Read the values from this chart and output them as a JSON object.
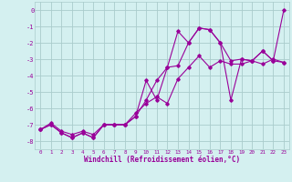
{
  "xlabel": "Windchill (Refroidissement éolien,°C)",
  "x": [
    0,
    1,
    2,
    3,
    4,
    5,
    6,
    7,
    8,
    9,
    10,
    11,
    12,
    13,
    14,
    15,
    16,
    17,
    18,
    19,
    20,
    21,
    22,
    23
  ],
  "line1": [
    -7.3,
    -7.0,
    -7.5,
    -7.8,
    -7.5,
    -7.8,
    -7.0,
    -7.0,
    -7.0,
    -6.5,
    -5.5,
    -4.3,
    -3.5,
    -1.3,
    -2.0,
    -1.1,
    -1.2,
    -2.0,
    -3.1,
    -3.0,
    -3.1,
    -2.5,
    -3.1,
    -3.2
  ],
  "line2": [
    -7.3,
    -7.0,
    -7.5,
    -7.8,
    -7.5,
    -7.8,
    -7.0,
    -7.0,
    -7.0,
    -6.5,
    -4.3,
    -5.5,
    -3.5,
    -3.4,
    -2.0,
    -1.1,
    -1.2,
    -2.0,
    -5.5,
    -3.0,
    -3.1,
    -2.5,
    -3.1,
    0.0
  ],
  "line3": [
    -7.3,
    -6.9,
    -7.4,
    -7.6,
    -7.4,
    -7.6,
    -7.0,
    -7.0,
    -7.0,
    -6.3,
    -5.7,
    -5.3,
    -5.7,
    -4.2,
    -3.5,
    -2.8,
    -3.5,
    -3.1,
    -3.3,
    -3.3,
    -3.1,
    -3.3,
    -3.0,
    -3.2
  ],
  "line_color": "#990099",
  "bg_color": "#d4f0f0",
  "grid_color": "#aacccc",
  "ylim": [
    -8.5,
    0.5
  ],
  "xlim": [
    -0.5,
    23.5
  ]
}
